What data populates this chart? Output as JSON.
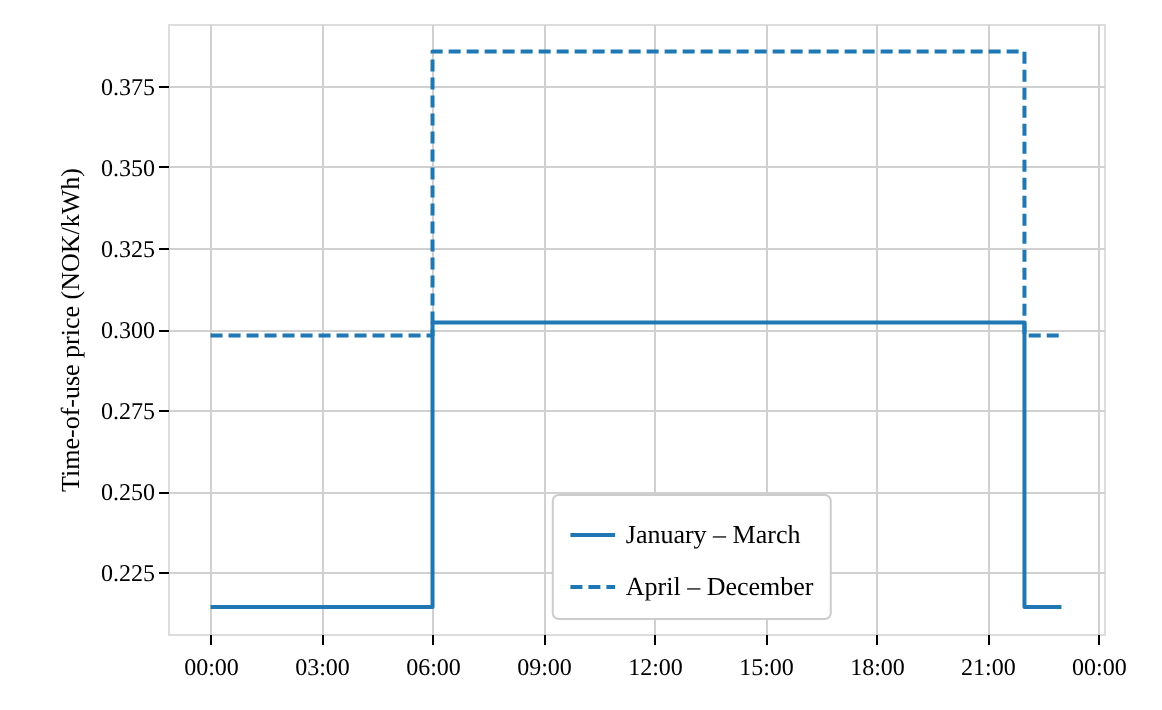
{
  "chart_data": {
    "type": "step",
    "ylabel": "Time-of-use price (NOK/kWh)",
    "x": [
      0,
      6,
      22,
      23
    ],
    "series": [
      {
        "name": "January – March",
        "color": "#1f77b4",
        "line_style": "solid",
        "values": [
          0.2143,
          0.302,
          0.2143,
          0.2143
        ]
      },
      {
        "name": "April – December",
        "color": "#1f77b4",
        "line_style": "dashed",
        "values": [
          0.298,
          0.3855,
          0.298,
          0.298
        ]
      }
    ],
    "xlim": [
      -1.15,
      24.15
    ],
    "xticks": [
      {
        "value": 0,
        "label": "00:00"
      },
      {
        "value": 3,
        "label": "03:00"
      },
      {
        "value": 6,
        "label": "06:00"
      },
      {
        "value": 9,
        "label": "09:00"
      },
      {
        "value": 12,
        "label": "12:00"
      },
      {
        "value": 15,
        "label": "15:00"
      },
      {
        "value": 18,
        "label": "18:00"
      },
      {
        "value": 21,
        "label": "21:00"
      },
      {
        "value": 24,
        "label": "00:00"
      }
    ],
    "ylim": [
      0.206,
      0.394
    ],
    "yticks": [
      {
        "value": 0.225,
        "label": "0.225"
      },
      {
        "value": 0.25,
        "label": "0.250"
      },
      {
        "value": 0.275,
        "label": "0.275"
      },
      {
        "value": 0.3,
        "label": "0.300"
      },
      {
        "value": 0.325,
        "label": "0.325"
      },
      {
        "value": 0.35,
        "label": "0.350"
      },
      {
        "value": 0.375,
        "label": "0.375"
      }
    ],
    "grid": true,
    "legend": "bottom"
  }
}
